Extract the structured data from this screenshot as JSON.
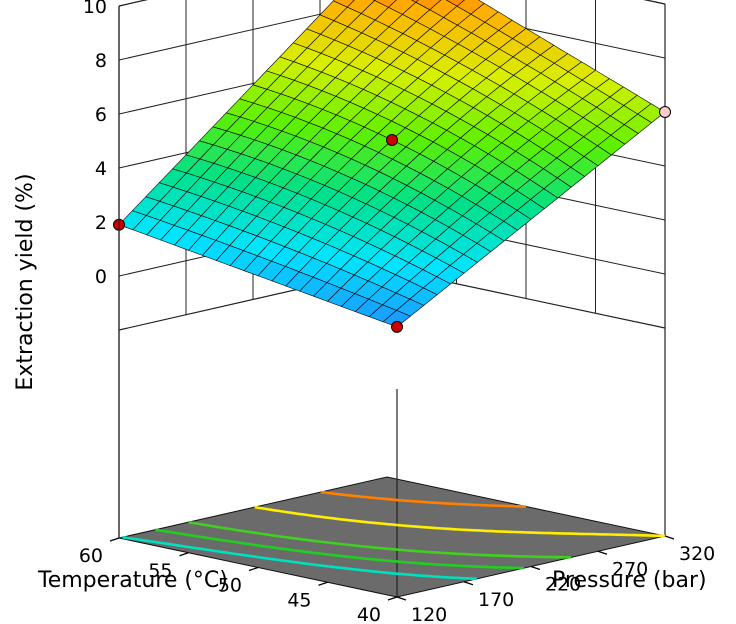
{
  "chart_data": {
    "type": "surface3d",
    "title": "",
    "xlabel": "Temperature (°C)",
    "ylabel": "Pressure (bar)",
    "zlabel": "Extraction yield (%)",
    "x_ticks": [
      "40",
      "45",
      "50",
      "55",
      "60"
    ],
    "y_ticks": [
      "120",
      "170",
      "220",
      "270",
      "320"
    ],
    "z_ticks": [
      "0",
      "2",
      "4",
      "6",
      "8",
      "10"
    ],
    "xlim": [
      40,
      60
    ],
    "ylim": [
      120,
      320
    ],
    "zlim": [
      -2,
      10
    ],
    "surface_corners": [
      {
        "temperature": 40,
        "pressure": 120,
        "yield": 0.3
      },
      {
        "temperature": 60,
        "pressure": 120,
        "yield": 1.9
      },
      {
        "temperature": 40,
        "pressure": 320,
        "yield": 6.0
      },
      {
        "temperature": 60,
        "pressure": 320,
        "yield": 10.0
      }
    ],
    "center_value": {
      "temperature": 50,
      "pressure": 220,
      "yield": 5.0
    },
    "design_points": [
      {
        "temperature": 60,
        "pressure": 120,
        "yield": 1.9,
        "color": "#cc0000"
      },
      {
        "temperature": 40,
        "pressure": 120,
        "yield": 0.3,
        "color": "#cc0000"
      },
      {
        "temperature": 50,
        "pressure": 220,
        "yield": 5.0,
        "color": "#cc0000"
      },
      {
        "temperature": 40,
        "pressure": 320,
        "yield": 6.0,
        "color": "#ffcccc"
      }
    ],
    "contour_levels": [
      2,
      3,
      4,
      6,
      8
    ],
    "contour_colors": [
      "#00e0c0",
      "#20d020",
      "#40d020",
      "#ffee00",
      "#ff8000"
    ],
    "floor_color": "#6b6b6b",
    "grid": true,
    "colormap": [
      "#1e90ff",
      "#00e5ff",
      "#00e08a",
      "#5ef000",
      "#d8f000",
      "#ffb000",
      "#ff2000"
    ]
  }
}
